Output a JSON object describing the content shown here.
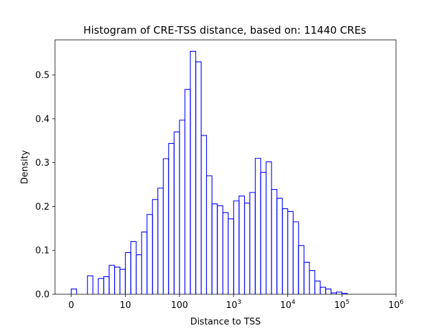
{
  "chart_data": {
    "type": "histogram",
    "title": "Histogram of CRE-TSS distance, based on: 11440 CREs",
    "xlabel": "Distance to TSS",
    "ylabel": "Density",
    "xscale": "symlog",
    "xlim": [
      -0.3,
      6
    ],
    "ylim": [
      0,
      0.58
    ],
    "x_ticks": [
      {
        "label": "0",
        "value": 0
      },
      {
        "label": "10",
        "value": 1
      },
      {
        "label": "100",
        "value": 2
      },
      {
        "label": "10",
        "sup": "3",
        "value": 3
      },
      {
        "label": "10",
        "sup": "4",
        "value": 4
      },
      {
        "label": "10",
        "sup": "5",
        "value": 5
      },
      {
        "label": "10",
        "sup": "6",
        "value": 6
      }
    ],
    "y_ticks": [
      "0.0",
      "0.1",
      "0.2",
      "0.3",
      "0.4",
      "0.5"
    ],
    "line_color": "#0000ff",
    "bin_edges": [
      0.0,
      0.1,
      0.2,
      0.3,
      0.4,
      0.5,
      0.6,
      0.7,
      0.8,
      0.9,
      1.0,
      1.1,
      1.2,
      1.3,
      1.4,
      1.5,
      1.6,
      1.7,
      1.8,
      1.9,
      2.0,
      2.1,
      2.2,
      2.3,
      2.4,
      2.5,
      2.6,
      2.7,
      2.8,
      2.9,
      3.0,
      3.1,
      3.2,
      3.3,
      3.4,
      3.5,
      3.6,
      3.7,
      3.8,
      3.9,
      4.0,
      4.1,
      4.2,
      4.3,
      4.4,
      4.5,
      4.6,
      4.7,
      4.8,
      4.9,
      5.0,
      5.1,
      5.2,
      5.3,
      5.4,
      5.5,
      5.6
    ],
    "values": [
      0.012,
      0.0,
      0.0,
      0.042,
      0.0,
      0.036,
      0.04,
      0.066,
      0.062,
      0.057,
      0.095,
      0.12,
      0.09,
      0.142,
      0.182,
      0.216,
      0.242,
      0.309,
      0.344,
      0.37,
      0.397,
      0.467,
      0.554,
      0.53,
      0.362,
      0.27,
      0.206,
      0.202,
      0.186,
      0.172,
      0.213,
      0.224,
      0.208,
      0.232,
      0.31,
      0.278,
      0.302,
      0.239,
      0.219,
      0.195,
      0.189,
      0.165,
      0.111,
      0.073,
      0.054,
      0.03,
      0.016,
      0.012,
      0.003,
      0.005,
      0.002,
      0.0,
      0.0,
      0.0,
      0.0,
      0.0
    ]
  }
}
